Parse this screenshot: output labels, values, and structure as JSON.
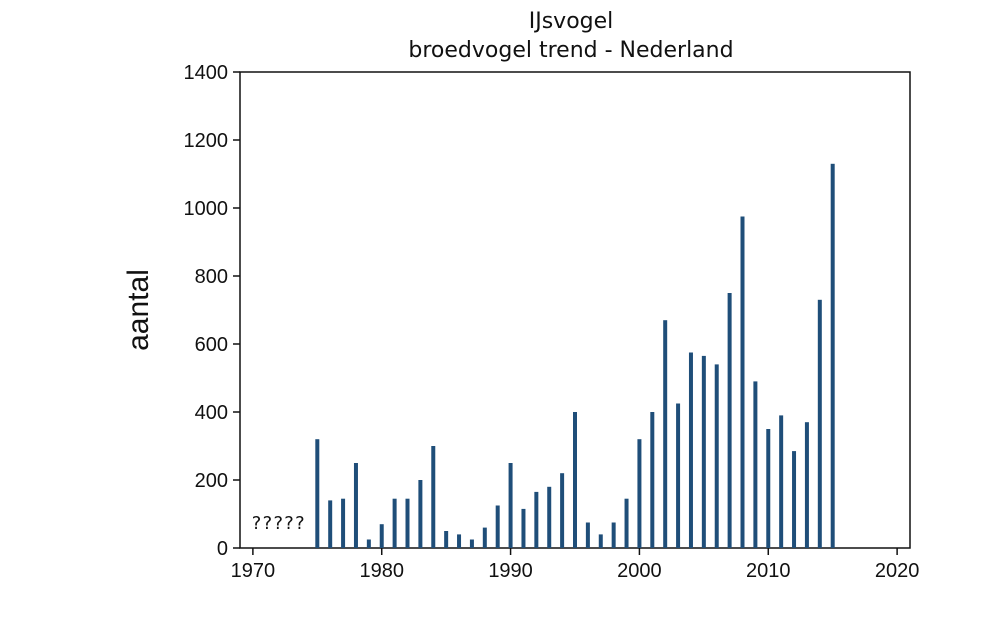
{
  "chart_data": {
    "type": "bar",
    "title": "IJsvogel",
    "subtitle": "broedvogel trend - Nederland",
    "xlabel": "",
    "ylabel": "aantal",
    "xlim": [
      1969,
      2021
    ],
    "ylim": [
      0,
      1400
    ],
    "xticks": [
      1970,
      1980,
      1990,
      2000,
      2010,
      2020
    ],
    "yticks": [
      0,
      200,
      400,
      600,
      800,
      1000,
      1200,
      1400
    ],
    "bar_color": "#1f4e79",
    "grid": false,
    "annotation": "?????",
    "x": [
      1975,
      1976,
      1977,
      1978,
      1979,
      1980,
      1981,
      1982,
      1983,
      1984,
      1985,
      1986,
      1987,
      1988,
      1989,
      1990,
      1991,
      1992,
      1993,
      1994,
      1995,
      1996,
      1997,
      1998,
      1999,
      2000,
      2001,
      2002,
      2003,
      2004,
      2005,
      2006,
      2007,
      2008,
      2009,
      2010,
      2011,
      2012,
      2013,
      2014,
      2015
    ],
    "values": [
      320,
      140,
      145,
      250,
      25,
      70,
      145,
      145,
      200,
      300,
      50,
      40,
      25,
      60,
      125,
      250,
      115,
      165,
      180,
      220,
      400,
      75,
      40,
      75,
      145,
      320,
      400,
      670,
      425,
      575,
      565,
      540,
      750,
      975,
      490,
      350,
      390,
      285,
      370,
      730,
      1130
    ]
  }
}
